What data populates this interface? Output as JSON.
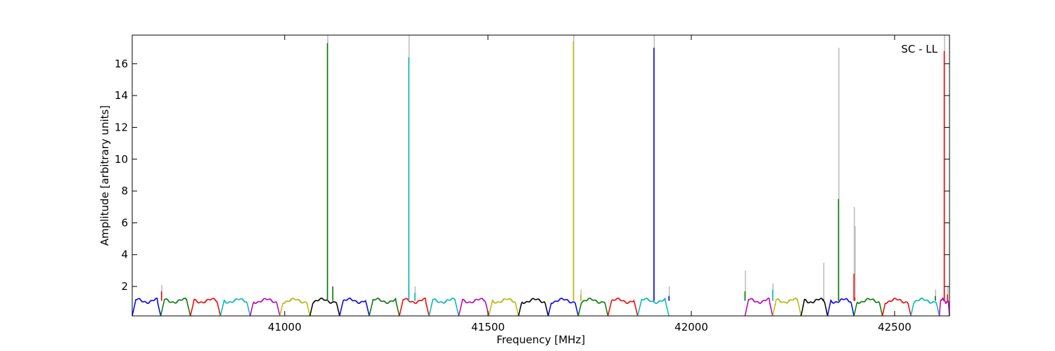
{
  "chart_data": {
    "type": "line",
    "xlabel": "Frequency [MHz]",
    "ylabel": "Amplitude [arbitrary units]",
    "annotation": "SC - LL",
    "annotation_position": "top-right",
    "xlim": [
      40625,
      42635
    ],
    "ylim": [
      0.15,
      17.8
    ],
    "grid": false,
    "legend": "none",
    "x_ticks": [
      41000,
      41500,
      42000,
      42500
    ],
    "y_ticks": [
      2,
      4,
      6,
      8,
      10,
      12,
      14,
      16
    ],
    "band_colors": [
      "#0000ff",
      "#008000",
      "#ff0000",
      "#00bfbf",
      "#bf00bf",
      "#bfbf00",
      "#000000"
    ],
    "background_series_color": "#bbbbbb",
    "bands": [
      {
        "start": 40625,
        "end": 40695
      },
      {
        "start": 40695,
        "end": 40768
      },
      {
        "start": 40768,
        "end": 40842
      },
      {
        "start": 40842,
        "end": 40915
      },
      {
        "start": 40915,
        "end": 40988
      },
      {
        "start": 40988,
        "end": 41062
      },
      {
        "start": 41062,
        "end": 41135
      },
      {
        "start": 41135,
        "end": 41208
      },
      {
        "start": 41208,
        "end": 41282
      },
      {
        "start": 41282,
        "end": 41355
      },
      {
        "start": 41355,
        "end": 41428
      },
      {
        "start": 41428,
        "end": 41502
      },
      {
        "start": 41502,
        "end": 41575
      },
      {
        "start": 41575,
        "end": 41648
      },
      {
        "start": 41648,
        "end": 41722
      },
      {
        "start": 41722,
        "end": 41795
      },
      {
        "start": 41795,
        "end": 41868
      },
      {
        "start": 41868,
        "end": 41945
      },
      {
        "start": 42132,
        "end": 42200
      },
      {
        "start": 42200,
        "end": 42270
      },
      {
        "start": 42270,
        "end": 42335
      },
      {
        "start": 42335,
        "end": 42400
      },
      {
        "start": 42400,
        "end": 42470
      },
      {
        "start": 42470,
        "end": 42540
      },
      {
        "start": 42540,
        "end": 42610
      },
      {
        "start": 42610,
        "end": 42635
      }
    ],
    "spikes": [
      {
        "x": 40697,
        "y": 1.7,
        "gray": 2.1,
        "color": "#ff0000"
      },
      {
        "x": 41105,
        "y": 17.3,
        "gray": 17.8,
        "color": "#008000"
      },
      {
        "x": 41118,
        "y": 2.0,
        "gray": 2.0,
        "color": "#008000"
      },
      {
        "x": 41305,
        "y": 16.4,
        "gray": 17.8,
        "color": "#00bfbf"
      },
      {
        "x": 41320,
        "y": 1.6,
        "gray": 2.0,
        "color": "#00bfbf"
      },
      {
        "x": 41710,
        "y": 17.4,
        "gray": 17.8,
        "color": "#bfbf00"
      },
      {
        "x": 41728,
        "y": 1.5,
        "gray": 1.8,
        "color": "#bfbf00"
      },
      {
        "x": 41908,
        "y": 17.0,
        "gray": 17.8,
        "color": "#0000ff"
      },
      {
        "x": 41945,
        "y": 1.4,
        "gray": 2.0,
        "color": "#0000ff"
      },
      {
        "x": 42132,
        "y": 1.7,
        "gray": 3.0,
        "color": "#008000"
      },
      {
        "x": 42200,
        "y": 1.8,
        "gray": 2.2,
        "color": "#00bfbf"
      },
      {
        "x": 42325,
        "y": 1.2,
        "gray": 3.5,
        "color": "#000000"
      },
      {
        "x": 42362,
        "y": 7.5,
        "gray": 17.0,
        "color": "#008000"
      },
      {
        "x": 42400,
        "y": 2.8,
        "gray": 7.0,
        "color": "#ff0000"
      },
      {
        "x": 42402,
        "y": 1.3,
        "gray": 5.8,
        "color": "#ff0000"
      },
      {
        "x": 42600,
        "y": 1.4,
        "gray": 1.8,
        "color": "#008000"
      },
      {
        "x": 42622,
        "y": 16.8,
        "gray": 17.8,
        "color": "#ff0000"
      },
      {
        "x": 42630,
        "y": 1.5,
        "gray": 2.0,
        "color": "#ff0000"
      }
    ]
  }
}
